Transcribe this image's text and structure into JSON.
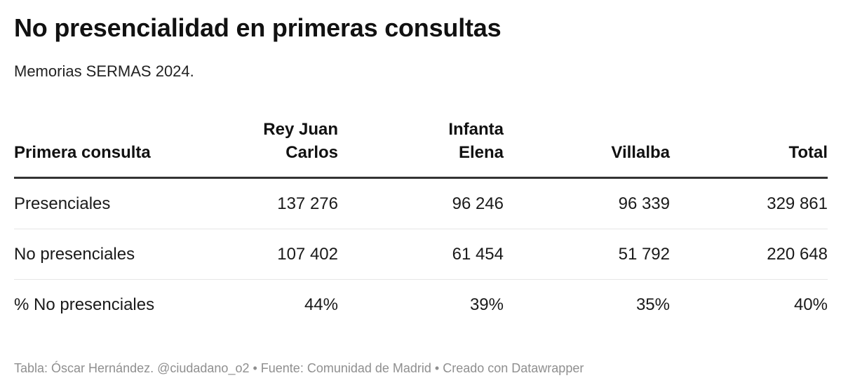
{
  "title": "No presencialidad en primeras consultas",
  "subtitle": "Memorias SERMAS 2024.",
  "chart_data": {
    "type": "table",
    "columns": [
      "Primera consulta",
      "Rey Juan Carlos",
      "Infanta Elena",
      "Villalba",
      "Total"
    ],
    "rows": [
      [
        "Presenciales",
        "137 276",
        "96 246",
        "96 339",
        "329 861"
      ],
      [
        "No presenciales",
        "107 402",
        "61 454",
        "51 792",
        "220 648"
      ],
      [
        "% No presenciales",
        "44%",
        "39%",
        "35%",
        "40%"
      ]
    ]
  },
  "footer": "Tabla: Óscar Hernández. @ciudadano_o2 • Fuente: Comunidad de Madrid • Creado con Datawrapper",
  "colors": {
    "text": "#1a1a1a",
    "header_rule": "#333333",
    "row_rule": "#e6e6e6",
    "footer_text": "#8f8f8f"
  }
}
